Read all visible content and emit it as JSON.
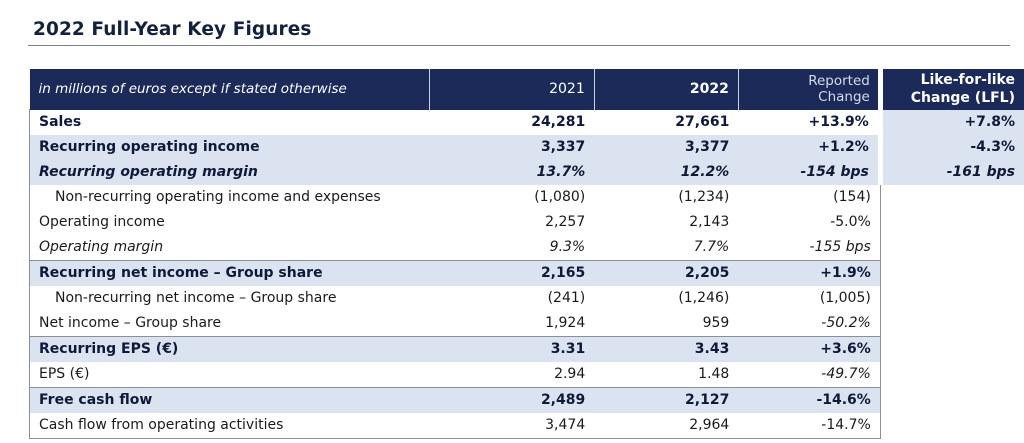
{
  "title": "2022 Full-Year Key Figures",
  "header": {
    "label": "in millions of euros except if stated otherwise",
    "col_2021": "2021",
    "col_2022": "2022",
    "reported_line1": "Reported",
    "reported_line2": "Change",
    "lfl_line1": "Like-for-like",
    "lfl_line2": "Change (LFL)"
  },
  "rows": [
    {
      "label": "Sales",
      "v2021": "24,281",
      "v2022": "27,661",
      "reported": "+13.9%",
      "lfl": "+7.8%"
    },
    {
      "label": "Recurring operating income",
      "v2021": "3,337",
      "v2022": "3,377",
      "reported": "+1.2%",
      "lfl": "-4.3%"
    },
    {
      "label": "Recurring operating margin",
      "v2021": "13.7%",
      "v2022": "12.2%",
      "reported": "-154 bps",
      "lfl": "-161 bps"
    },
    {
      "label": "Non-recurring operating income and expenses",
      "v2021": "(1,080)",
      "v2022": "(1,234)",
      "reported": "(154)"
    },
    {
      "label": "Operating income",
      "v2021": "2,257",
      "v2022": "2,143",
      "reported": "-5.0%"
    },
    {
      "label": "Operating margin",
      "v2021": "9.3%",
      "v2022": "7.7%",
      "reported": "-155 bps"
    },
    {
      "label": "Recurring net income – Group share",
      "v2021": "2,165",
      "v2022": "2,205",
      "reported": "+1.9%"
    },
    {
      "label": "Non-recurring net income – Group share",
      "v2021": "(241)",
      "v2022": "(1,246)",
      "reported": "(1,005)"
    },
    {
      "label": "Net income – Group share",
      "v2021": "1,924",
      "v2022": "959",
      "reported": "-50.2%"
    },
    {
      "label": "Recurring EPS (€)",
      "v2021": "3.31",
      "v2022": "3.43",
      "reported": "+3.6%"
    },
    {
      "label": "EPS (€)",
      "v2021": "2.94",
      "v2022": "1.48",
      "reported": "-49.7%"
    },
    {
      "label": "Free cash flow",
      "v2021": "2,489",
      "v2022": "2,127",
      "reported": "-14.6%"
    },
    {
      "label": "Cash flow from operating activities",
      "v2021": "3,474",
      "v2022": "2,964",
      "reported": "-14.7%"
    }
  ]
}
